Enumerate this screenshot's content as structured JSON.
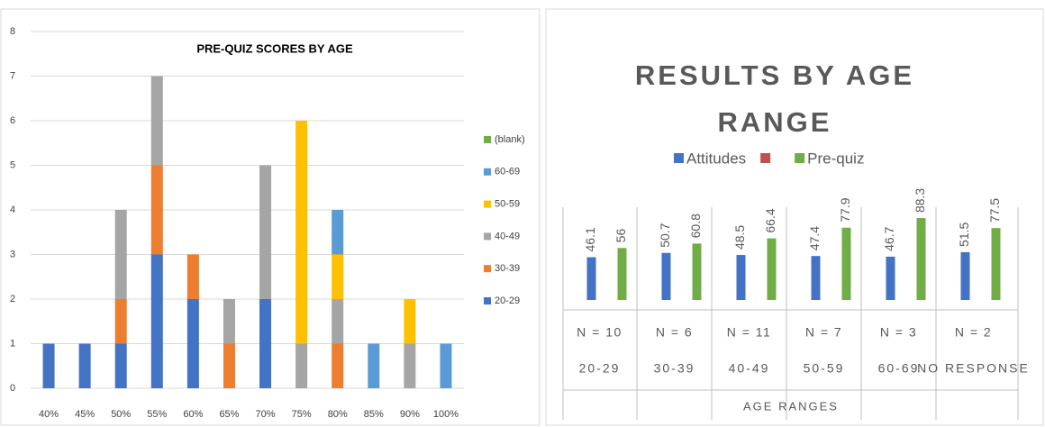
{
  "chart_data": [
    {
      "type": "stacked_bar",
      "title": "PRE-QUIZ SCORES BY AGE",
      "categories": [
        "40%",
        "45%",
        "50%",
        "55%",
        "60%",
        "65%",
        "70%",
        "75%",
        "80%",
        "85%",
        "90%",
        "100%"
      ],
      "series": [
        {
          "name": "20-29",
          "color": "#4472c4",
          "values": [
            1,
            1,
            1,
            3,
            2,
            null,
            2,
            null,
            null,
            null,
            null,
            null
          ]
        },
        {
          "name": "30-39",
          "color": "#ed7d31",
          "values": [
            null,
            null,
            1,
            2,
            1,
            1,
            null,
            null,
            1,
            null,
            null,
            null
          ]
        },
        {
          "name": "40-49",
          "color": "#a5a5a5",
          "values": [
            null,
            null,
            2,
            2,
            null,
            1,
            3,
            1,
            1,
            null,
            1,
            null
          ]
        },
        {
          "name": "50-59",
          "color": "#ffc000",
          "values": [
            null,
            null,
            null,
            null,
            null,
            null,
            null,
            5,
            1,
            null,
            1,
            null
          ]
        },
        {
          "name": "60-69",
          "color": "#5b9bd5",
          "values": [
            null,
            null,
            null,
            null,
            null,
            null,
            null,
            null,
            1,
            1,
            null,
            1
          ]
        },
        {
          "name": "(blank)",
          "color": "#70ad47",
          "values": [
            null,
            null,
            null,
            null,
            null,
            null,
            null,
            null,
            null,
            null,
            null,
            null
          ]
        }
      ],
      "ylim": [
        0,
        8
      ],
      "yticks": [
        0,
        1,
        2,
        3,
        4,
        5,
        6,
        7,
        8
      ],
      "grid": true,
      "legend": "right"
    },
    {
      "type": "grouped_bar",
      "title": "RESULTS BY AGE RANGE",
      "categories": [
        "20-29",
        "30-39",
        "40-49",
        "50-59",
        "60-69",
        "NO RESPONSE"
      ],
      "group_labels": [
        "N = 10",
        "N = 6",
        "N = 11",
        "N = 7",
        "N = 3",
        "N = 2"
      ],
      "xlabel": "AGE RANGES",
      "series": [
        {
          "name": "Attitudes",
          "color": "#4472c4",
          "values": [
            46.1,
            50.7,
            48.5,
            47.4,
            46.7,
            51.5
          ]
        },
        {
          "color": "#c0504d",
          "values": [
            null,
            null,
            null,
            null,
            null,
            null
          ]
        },
        {
          "name": "Pre-quiz",
          "color": "#70ad47",
          "values": [
            56,
            60.8,
            66.4,
            77.9,
            88.3,
            77.5
          ]
        }
      ],
      "legend": "top"
    }
  ]
}
